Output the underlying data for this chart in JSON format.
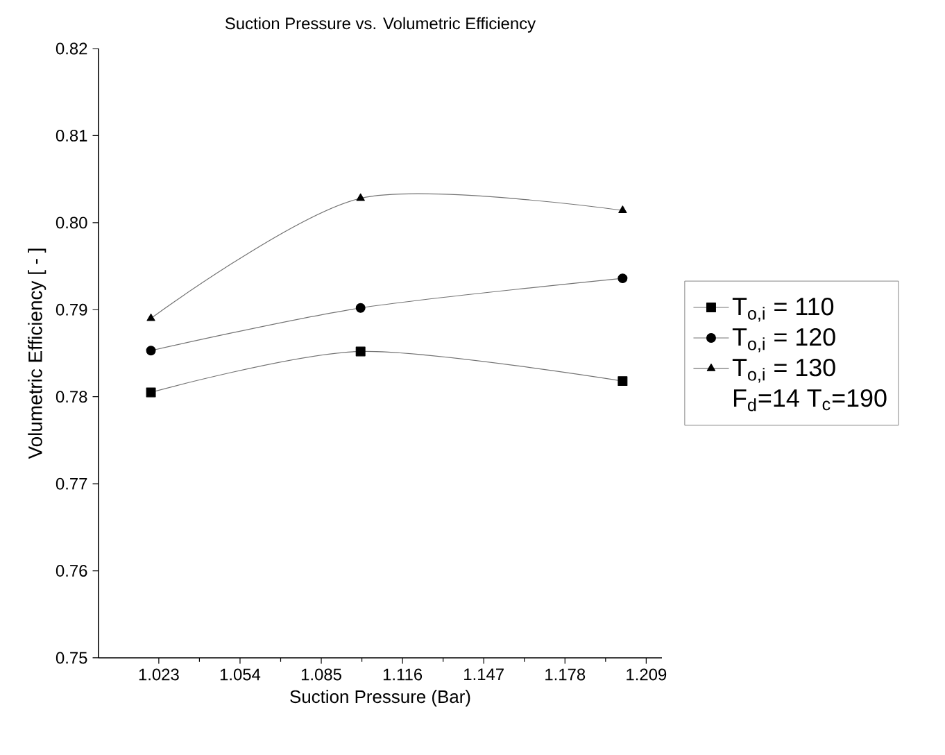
{
  "chart_data": {
    "type": "line",
    "title": "Suction Pressure vs. Volumetric Efficiency",
    "xlabel": "Suction Pressure (Bar)",
    "ylabel": "Volumetric Efficiency [ - ]",
    "x": [
      1.02,
      1.1,
      1.2
    ],
    "series": [
      {
        "name": "T$_{o,i}$ = 110",
        "color": "#000000",
        "marker": "square",
        "values": [
          0.7805,
          0.7852,
          0.7818
        ]
      },
      {
        "name": "T$_{o,i}$ = 120",
        "color": "#000000",
        "marker": "circle",
        "values": [
          0.7853,
          0.7902,
          0.7936
        ]
      },
      {
        "name": "T$_{o,i}$ = 130",
        "color": "#000000",
        "marker": "triangle",
        "values": [
          0.789,
          0.8028,
          0.8014
        ]
      }
    ],
    "xlim": [
      1.0,
      1.215
    ],
    "ylim": [
      0.75,
      0.82
    ],
    "xticks": [
      1.023,
      1.054,
      1.085,
      1.116,
      1.147,
      1.178,
      1.209
    ],
    "yticks": [
      0.75,
      0.76,
      0.77,
      0.78,
      0.79,
      {
        "value": 0.8,
        "label": "0.80"
      },
      0.81,
      0.82
    ],
    "annotations": [
      "F$_{d}$=14 T$_{c}$=190"
    ],
    "grid": false,
    "legend": "right",
    "line_style": "solid"
  }
}
